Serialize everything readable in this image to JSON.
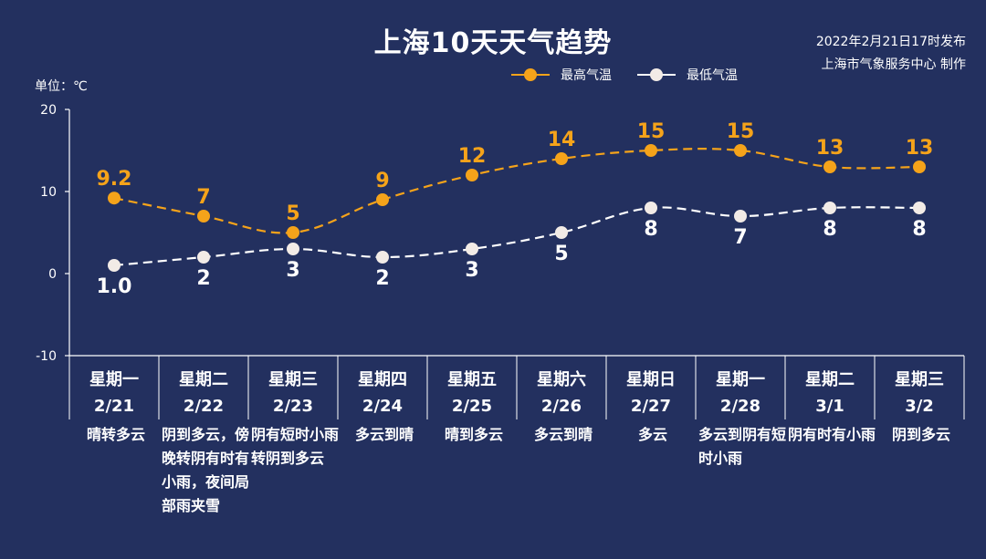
{
  "title": "上海10天天气趋势",
  "issue": {
    "line1": "2022年2月21日17时发布",
    "line2": "上海市气象服务中心 制作"
  },
  "unit_label": "单位：℃",
  "colors": {
    "background": "#23305f",
    "high": "#f5a31a",
    "low": "#ffffff"
  },
  "chart_data": {
    "type": "line",
    "ylim": [
      -10,
      20
    ],
    "yticks": [
      -10,
      0,
      10,
      20
    ],
    "series": [
      {
        "name": "最高气温",
        "color": "#f5a31a",
        "values": [
          9.2,
          7,
          5,
          9,
          12,
          14,
          15,
          15,
          13,
          13
        ],
        "labels": [
          "9.2",
          "7",
          "5",
          "9",
          "12",
          "14",
          "15",
          "15",
          "13",
          "13"
        ]
      },
      {
        "name": "最低气温",
        "color": "#ffffff",
        "values": [
          1.0,
          2,
          3,
          2,
          3,
          5,
          8,
          7,
          8,
          8
        ],
        "labels": [
          "1.0",
          "2",
          "3",
          "2",
          "3",
          "5",
          "8",
          "7",
          "8",
          "8"
        ]
      }
    ],
    "days": [
      {
        "weekday": "星期一",
        "date": "2/21",
        "desc": "晴转多云"
      },
      {
        "weekday": "星期二",
        "date": "2/22",
        "desc": "阴到多云，傍晚转阴有时有小雨，夜间局部雨夹雪"
      },
      {
        "weekday": "星期三",
        "date": "2/23",
        "desc": "阴有短时小雨转阴到多云"
      },
      {
        "weekday": "星期四",
        "date": "2/24",
        "desc": "多云到晴"
      },
      {
        "weekday": "星期五",
        "date": "2/25",
        "desc": "晴到多云"
      },
      {
        "weekday": "星期六",
        "date": "2/26",
        "desc": "多云到晴"
      },
      {
        "weekday": "星期日",
        "date": "2/27",
        "desc": "多云"
      },
      {
        "weekday": "星期一",
        "date": "2/28",
        "desc": "多云到阴有短时小雨"
      },
      {
        "weekday": "星期二",
        "date": "3/1",
        "desc": "阴有时有小雨"
      },
      {
        "weekday": "星期三",
        "date": "3/2",
        "desc": "阴到多云"
      }
    ]
  }
}
